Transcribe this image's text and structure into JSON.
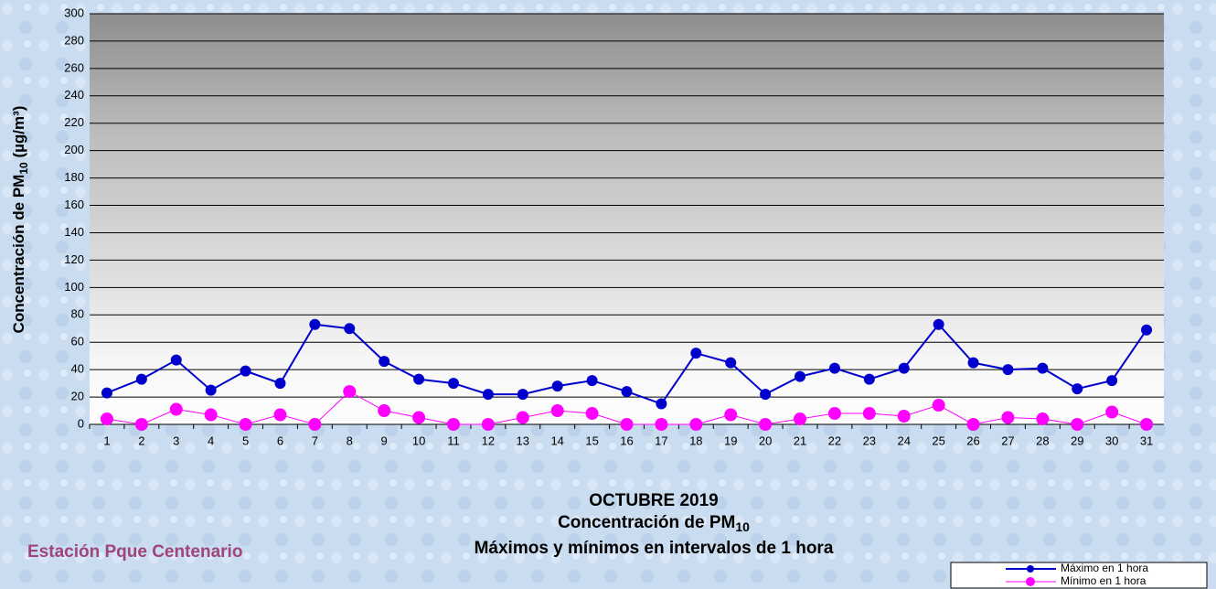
{
  "chart_data": {
    "type": "line",
    "title_lines": [
      "OCTUBRE 2019",
      [
        "Concentración de PM",
        "10"
      ],
      "Máximos y mínimos en intervalos de 1 hora"
    ],
    "annotation": "Estación Pque Centenario",
    "ylabel": [
      "Concentración de PM",
      "10",
      " (µg/m³)"
    ],
    "categories": [
      "1",
      "2",
      "3",
      "4",
      "5",
      "6",
      "7",
      "8",
      "9",
      "10",
      "11",
      "12",
      "13",
      "14",
      "15",
      "16",
      "17",
      "18",
      "19",
      "20",
      "21",
      "22",
      "23",
      "24",
      "25",
      "26",
      "27",
      "28",
      "29",
      "30",
      "31"
    ],
    "series": [
      {
        "name": "Máximo en 1 hora",
        "color": "#0000cc",
        "values": [
          23,
          33,
          47,
          25,
          39,
          30,
          73,
          70,
          46,
          33,
          30,
          22,
          22,
          28,
          32,
          24,
          15,
          52,
          45,
          22,
          35,
          41,
          33,
          41,
          73,
          45,
          40,
          41,
          26,
          32,
          69
        ]
      },
      {
        "name": "Mínimo en 1 hora",
        "color": "#ff00ff",
        "values": [
          4,
          0,
          11,
          7,
          0,
          7,
          0,
          24,
          10,
          5,
          0,
          0,
          5,
          10,
          8,
          0,
          0,
          0,
          7,
          0,
          4,
          8,
          8,
          6,
          14,
          0,
          5,
          4,
          0,
          9,
          0
        ]
      }
    ],
    "ylim": [
      0,
      300
    ],
    "yticks": [
      0,
      20,
      40,
      60,
      80,
      100,
      120,
      140,
      160,
      180,
      200,
      220,
      240,
      260,
      280,
      300
    ],
    "grid": true,
    "legend": "bottom-right"
  }
}
